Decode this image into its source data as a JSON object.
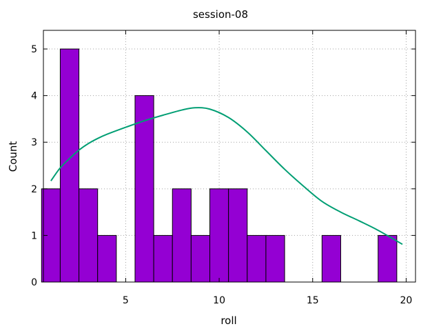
{
  "chart_data": {
    "type": "bar",
    "title": "session-08",
    "xlabel": "roll",
    "ylabel": "Count",
    "xlim": [
      0.6,
      20.5
    ],
    "ylim": [
      0,
      5.4
    ],
    "xticks": [
      5,
      10,
      15,
      20
    ],
    "yticks": [
      0,
      1,
      2,
      3,
      4,
      5
    ],
    "grid": true,
    "bin_width": 1,
    "bins": [
      {
        "x": 1,
        "count": 2
      },
      {
        "x": 2,
        "count": 5
      },
      {
        "x": 3,
        "count": 2
      },
      {
        "x": 4,
        "count": 1
      },
      {
        "x": 6,
        "count": 4
      },
      {
        "x": 7,
        "count": 1
      },
      {
        "x": 8,
        "count": 2
      },
      {
        "x": 9,
        "count": 1
      },
      {
        "x": 10,
        "count": 2
      },
      {
        "x": 11,
        "count": 2
      },
      {
        "x": 12,
        "count": 1
      },
      {
        "x": 13,
        "count": 1
      },
      {
        "x": 16,
        "count": 1
      },
      {
        "x": 19,
        "count": 1
      }
    ],
    "density_curve": {
      "x": [
        1,
        1.5,
        2,
        2.5,
        3,
        3.5,
        4,
        5,
        6,
        7,
        8,
        8.7,
        9.5,
        10.5,
        11.5,
        12.5,
        13.5,
        14.5,
        15.5,
        16.5,
        17.5,
        18.5,
        19.8
      ],
      "y": [
        2.17,
        2.45,
        2.65,
        2.83,
        2.97,
        3.08,
        3.17,
        3.32,
        3.46,
        3.58,
        3.69,
        3.74,
        3.71,
        3.53,
        3.22,
        2.82,
        2.42,
        2.06,
        1.73,
        1.5,
        1.31,
        1.11,
        0.81
      ]
    },
    "colors": {
      "bar_fill": "#9400d3",
      "bar_edge": "#000000",
      "curve": "#009e73",
      "grid": "#a0a0a0"
    }
  }
}
